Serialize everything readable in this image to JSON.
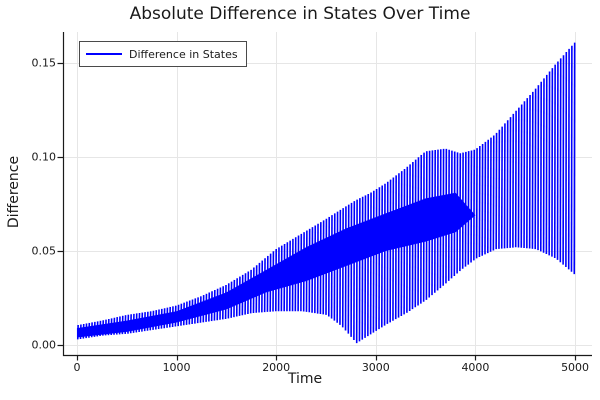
{
  "colors": {
    "line": "#0000ff",
    "grid": "#e6e6e6",
    "axis": "#1a1a1a",
    "text": "#1a1a1a",
    "legend_border": "#4a4a4a",
    "background": "#ffffff"
  },
  "chart_data": {
    "type": "line",
    "title": "Absolute Difference in States Over Time",
    "xlabel": "Time",
    "ylabel": "Difference",
    "series_name": "Difference in States",
    "line_color": "#0000ff",
    "grid": true,
    "legend_position": "top-left",
    "x_ticks": [
      0,
      1000,
      2000,
      3000,
      4000,
      5000
    ],
    "x_tick_labels": [
      "0",
      "1000",
      "2000",
      "3000",
      "4000",
      "5000"
    ],
    "y_tick_values": [
      0,
      0.05,
      0.1,
      0.15
    ],
    "y_tick_labels": [
      "0.00",
      "0.05",
      "0.10",
      "0.15"
    ],
    "xlim": [
      -140,
      5170
    ],
    "ylim": [
      -0.0053,
      0.1665
    ],
    "x_range_data": [
      0,
      5000
    ],
    "y_range_data": [
      0,
      0.161
    ],
    "oscillation_period": 28,
    "envelope": {
      "t": [
        0,
        250,
        500,
        750,
        1000,
        1250,
        1500,
        1750,
        2000,
        2250,
        2500,
        2650,
        2800,
        2950,
        3100,
        3300,
        3500,
        3700,
        3850,
        4000,
        4200,
        4400,
        4600,
        4800,
        5000
      ],
      "lower": [
        0.003,
        0.005,
        0.006,
        0.008,
        0.01,
        0.012,
        0.014,
        0.017,
        0.018,
        0.018,
        0.016,
        0.01,
        0.001,
        0.006,
        0.011,
        0.017,
        0.024,
        0.033,
        0.04,
        0.046,
        0.051,
        0.052,
        0.051,
        0.046,
        0.037
      ],
      "upper": [
        0.0105,
        0.013,
        0.016,
        0.018,
        0.021,
        0.026,
        0.032,
        0.04,
        0.051,
        0.059,
        0.067,
        0.072,
        0.077,
        0.081,
        0.086,
        0.094,
        0.103,
        0.1045,
        0.102,
        0.104,
        0.112,
        0.124,
        0.136,
        0.149,
        0.161
      ],
      "description": "Rapid oscillation fills band between lower and upper envelope; lower envelope dips to ~0 near t=2800 and arches to ~0.052 near t=4400; upper envelope rises to 0.161 at t=5000"
    },
    "dense_band": {
      "t": [
        0,
        500,
        1000,
        1500,
        1900,
        2300,
        2700,
        3100,
        3500,
        3800,
        4000
      ],
      "lower": [
        0.004,
        0.007,
        0.012,
        0.019,
        0.028,
        0.034,
        0.042,
        0.05,
        0.055,
        0.06,
        0.069
      ],
      "upper": [
        0.009,
        0.013,
        0.018,
        0.028,
        0.04,
        0.052,
        0.062,
        0.07,
        0.078,
        0.081,
        0.069
      ]
    }
  }
}
